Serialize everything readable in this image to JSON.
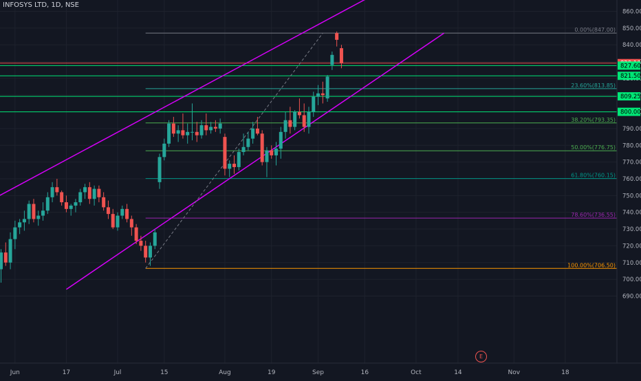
{
  "chart_data": {
    "type": "candlestick",
    "title": "INFOSYS LTD, 1D, NSE",
    "yaxis": {
      "min": 684,
      "max": 865,
      "ticks": [
        690,
        700,
        710,
        720,
        730,
        740,
        750,
        760,
        770,
        780,
        790,
        800,
        810,
        820,
        830,
        840,
        850,
        860
      ]
    },
    "xaxis": {
      "ticks": [
        {
          "label": "Jun",
          "i": 3
        },
        {
          "label": "17",
          "i": 14
        },
        {
          "label": "Jul",
          "i": 25
        },
        {
          "label": "15",
          "i": 35
        },
        {
          "label": "Aug",
          "i": 48
        },
        {
          "label": "19",
          "i": 58
        },
        {
          "label": "Sep",
          "i": 68
        },
        {
          "label": "16",
          "i": 78
        },
        {
          "label": "Oct",
          "i": 89
        },
        {
          "label": "14",
          "i": 98
        },
        {
          "label": "Nov",
          "i": 110
        },
        {
          "label": "18",
          "i": 121
        }
      ]
    },
    "price_tags": [
      {
        "value": 829.1,
        "label": "829.10",
        "bg": "#ef5350",
        "fg": "#ffffff",
        "line": "#ef5350"
      },
      {
        "value": 827.6,
        "label": "827.60",
        "bg": "#00e676",
        "fg": "#000000",
        "line": "#00e676"
      },
      {
        "value": 821.5,
        "label": "821.50",
        "bg": "#00e676",
        "fg": "#000000",
        "line": "#00e676"
      },
      {
        "value": 809.25,
        "label": "809.25",
        "bg": "#00e676",
        "fg": "#000000",
        "line": "#00e676"
      },
      {
        "value": 800.0,
        "label": "800.00",
        "bg": "#00e676",
        "fg": "#000000",
        "line": "#00e676"
      }
    ],
    "fib_levels": [
      {
        "value": 847.0,
        "label": "0.00%(847.00)",
        "color": "#787b86"
      },
      {
        "value": 813.85,
        "label": "23.60%(813.85)",
        "color": "#26a69a"
      },
      {
        "value": 793.35,
        "label": "38.20%(793.35)",
        "color": "#4caf50"
      },
      {
        "value": 776.75,
        "label": "50.00%(776.75)",
        "color": "#4caf50"
      },
      {
        "value": 760.15,
        "label": "61.80%(760.15)",
        "color": "#009688"
      },
      {
        "value": 736.55,
        "label": "78.60%(736.55)",
        "color": "#9c27b0"
      },
      {
        "value": 706.5,
        "label": "100.00%(706.50)",
        "color": "#ff9800"
      }
    ],
    "channel_lines": [
      {
        "from": [
          -5,
          743
        ],
        "to": [
          78,
          867
        ]
      },
      {
        "from": [
          14,
          694
        ],
        "to": [
          95,
          847
        ]
      }
    ],
    "trend_line": {
      "from": [
        31,
        706.5
      ],
      "to": [
        69,
        847
      ]
    },
    "fib_span": {
      "from": 31,
      "to": 95
    },
    "candles": [
      [
        706,
        718,
        698,
        716
      ],
      [
        716,
        722,
        708,
        710
      ],
      [
        710,
        728,
        706,
        724
      ],
      [
        724,
        735,
        718,
        731
      ],
      [
        731,
        736,
        727,
        734
      ],
      [
        734,
        741,
        729,
        736
      ],
      [
        736,
        747,
        733,
        745
      ],
      [
        745,
        748,
        734,
        736
      ],
      [
        736,
        741,
        732,
        738
      ],
      [
        738,
        746,
        735,
        741
      ],
      [
        741,
        752,
        739,
        749
      ],
      [
        749,
        758,
        746,
        755
      ],
      [
        755,
        760,
        750,
        752
      ],
      [
        752,
        753,
        744,
        746
      ],
      [
        746,
        750,
        740,
        742
      ],
      [
        742,
        745,
        738,
        744
      ],
      [
        744,
        748,
        740,
        746
      ],
      [
        746,
        754,
        744,
        752
      ],
      [
        752,
        757,
        748,
        755
      ],
      [
        755,
        758,
        745,
        748
      ],
      [
        748,
        756,
        744,
        754
      ],
      [
        754,
        756,
        746,
        749
      ],
      [
        749,
        752,
        741,
        743
      ],
      [
        743,
        747,
        736,
        739
      ],
      [
        739,
        742,
        730,
        731
      ],
      [
        731,
        740,
        729,
        738
      ],
      [
        738,
        744,
        736,
        742
      ],
      [
        742,
        745,
        734,
        736
      ],
      [
        736,
        738,
        726,
        731
      ],
      [
        731,
        733,
        721,
        723
      ],
      [
        723,
        726,
        717,
        720
      ],
      [
        720,
        723,
        710,
        713
      ],
      [
        713,
        722,
        708,
        720
      ],
      [
        720,
        730,
        718,
        728
      ],
      [
        758,
        775,
        754,
        773
      ],
      [
        773,
        784,
        771,
        781
      ],
      [
        781,
        795,
        779,
        793
      ],
      [
        793,
        797,
        785,
        787
      ],
      [
        787,
        792,
        782,
        789
      ],
      [
        789,
        799,
        784,
        786
      ],
      [
        786,
        793,
        781,
        788
      ],
      [
        788,
        805,
        783,
        788
      ],
      [
        788,
        794,
        782,
        786
      ],
      [
        786,
        795,
        784,
        792
      ],
      [
        792,
        799,
        786,
        789
      ],
      [
        789,
        794,
        787,
        791
      ],
      [
        791,
        795,
        788,
        790
      ],
      [
        790,
        796,
        787,
        793
      ],
      [
        785,
        787,
        762,
        766
      ],
      [
        766,
        771,
        761,
        769
      ],
      [
        769,
        774,
        763,
        767
      ],
      [
        767,
        778,
        765,
        776
      ],
      [
        776,
        787,
        774,
        779
      ],
      [
        779,
        788,
        777,
        784
      ],
      [
        784,
        794,
        781,
        790
      ],
      [
        790,
        797,
        786,
        787
      ],
      [
        787,
        789,
        768,
        770
      ],
      [
        770,
        779,
        761,
        777
      ],
      [
        777,
        780,
        772,
        774
      ],
      [
        774,
        782,
        768,
        778
      ],
      [
        778,
        791,
        772,
        788
      ],
      [
        788,
        800,
        784,
        795
      ],
      [
        795,
        803,
        787,
        791
      ],
      [
        791,
        801,
        789,
        800
      ],
      [
        800,
        808,
        796,
        798
      ],
      [
        798,
        805,
        788,
        791
      ],
      [
        791,
        803,
        787,
        800
      ],
      [
        800,
        812,
        797,
        809
      ],
      [
        809,
        816,
        804,
        811
      ],
      [
        811,
        818,
        805,
        810
      ],
      [
        808,
        822,
        806,
        821
      ],
      [
        828,
        836,
        825,
        834
      ],
      [
        847,
        848,
        839,
        843
      ],
      [
        838,
        840,
        826,
        829
      ]
    ]
  }
}
